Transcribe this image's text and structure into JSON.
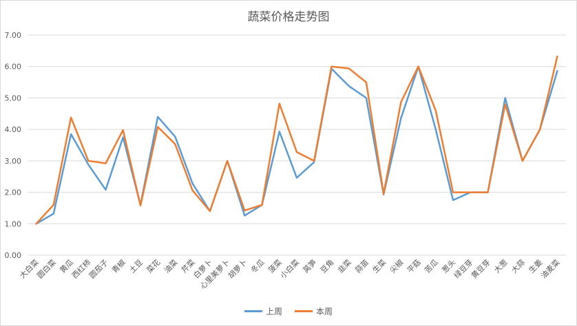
{
  "chart_data": {
    "type": "line",
    "title": "蔬菜价格走势图",
    "categories": [
      "大白菜",
      "圆白菜",
      "黄瓜",
      "西红柿",
      "圆茄子",
      "青椒",
      "土豆",
      "菜花",
      "油菜",
      "芹菜",
      "白萝卜",
      "心里美萝卜",
      "胡萝卜",
      "冬瓜",
      "菠菜",
      "小白菜",
      "莴笋",
      "豆角",
      "韭菜",
      "蒜苗",
      "生菜",
      "尖椒",
      "平菇",
      "苦瓜",
      "葱头",
      "绿豆芽",
      "黄豆芽",
      "大葱",
      "大蒜",
      "生姜",
      "油麦菜"
    ],
    "series": [
      {
        "name": "上周",
        "color": "#5b9bd5",
        "values": [
          1.0,
          1.32,
          3.85,
          2.88,
          2.08,
          3.75,
          1.6,
          4.4,
          3.77,
          2.28,
          1.4,
          3.0,
          1.26,
          1.6,
          3.93,
          2.46,
          2.96,
          5.93,
          5.38,
          5.0,
          1.93,
          4.36,
          6.0,
          4.0,
          1.75,
          2.0,
          2.0,
          5.0,
          3.0,
          4.0,
          5.86
        ]
      },
      {
        "name": "本周",
        "color": "#ed7d31",
        "values": [
          1.0,
          1.6,
          4.38,
          3.0,
          2.92,
          3.98,
          1.58,
          4.08,
          3.53,
          2.06,
          1.4,
          3.0,
          1.42,
          1.6,
          4.82,
          3.28,
          3.0,
          6.0,
          5.94,
          5.5,
          1.95,
          4.87,
          6.0,
          4.6,
          2.0,
          2.0,
          2.0,
          4.8,
          3.0,
          4.0,
          6.32
        ]
      }
    ],
    "ylim": [
      0,
      7
    ],
    "yticks": [
      "0.00",
      "1.00",
      "2.00",
      "3.00",
      "4.00",
      "5.00",
      "6.00",
      "7.00"
    ],
    "grid": true,
    "legend": "bottom"
  },
  "colors": {
    "grid": "#d9d9d9",
    "text": "#595959"
  }
}
